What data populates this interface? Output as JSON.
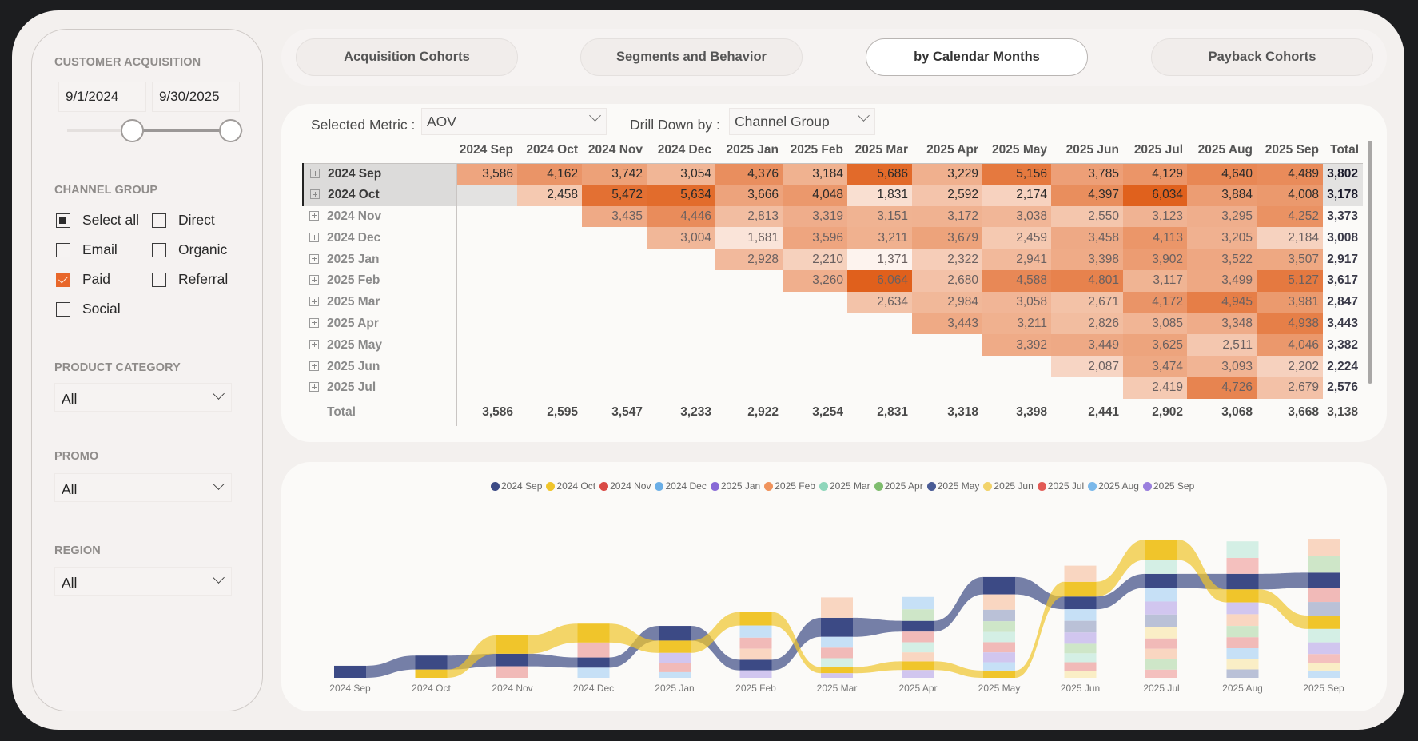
{
  "sidebar": {
    "customer_acquisition": {
      "heading": "CUSTOMER ACQUISITION",
      "start_date": "9/1/2024",
      "end_date": "9/30/2025"
    },
    "channel_group": {
      "heading": "CHANNEL GROUP",
      "options": [
        {
          "label": "Select all",
          "state": "partial"
        },
        {
          "label": "Direct",
          "state": "unchecked"
        },
        {
          "label": "Email",
          "state": "unchecked"
        },
        {
          "label": "Organic",
          "state": "unchecked"
        },
        {
          "label": "Paid",
          "state": "checked"
        },
        {
          "label": "Referral",
          "state": "unchecked"
        },
        {
          "label": "Social",
          "state": "unchecked"
        }
      ]
    },
    "product_category": {
      "heading": "PRODUCT CATEGORY",
      "value": "All"
    },
    "promo": {
      "heading": "PROMO",
      "value": "All"
    },
    "region": {
      "heading": "REGION",
      "value": "All"
    }
  },
  "tabs": [
    {
      "label": "Acquisition Cohorts",
      "active": false
    },
    {
      "label": "Segments and Behavior",
      "active": false
    },
    {
      "label": "by Calendar Months",
      "active": true
    },
    {
      "label": "Payback Cohorts",
      "active": false
    }
  ],
  "controls": {
    "metric_label": "Selected Metric :",
    "metric_value": "AOV",
    "drill_label": "Drill Down by :",
    "drill_value": "Channel Group"
  },
  "matrix": {
    "columns": [
      "2024 Sep",
      "2024 Oct",
      "2024 Nov",
      "2024 Dec",
      "2025 Jan",
      "2025 Feb",
      "2025 Mar",
      "2025 Apr",
      "2025 May",
      "2025 Jun",
      "2025 Jul",
      "2025 Aug",
      "2025 Sep"
    ],
    "total_label": "Total",
    "rows": [
      {
        "label": "2024 Sep",
        "selected": true,
        "values": [
          3586,
          4162,
          3742,
          3054,
          4376,
          3184,
          5686,
          3229,
          5156,
          3785,
          4129,
          4640,
          4489
        ],
        "total": 3802
      },
      {
        "label": "2024 Oct",
        "selected": true,
        "values": [
          null,
          2458,
          5472,
          5634,
          3666,
          4048,
          1831,
          2592,
          2174,
          4397,
          6034,
          3884,
          4008
        ],
        "total": 3178
      },
      {
        "label": "2024 Nov",
        "selected": false,
        "values": [
          null,
          null,
          3435,
          4446,
          2813,
          3319,
          3151,
          3172,
          3038,
          2550,
          3123,
          3295,
          4252
        ],
        "total": 3373
      },
      {
        "label": "2024 Dec",
        "selected": false,
        "values": [
          null,
          null,
          null,
          3004,
          1681,
          3596,
          3211,
          3679,
          2459,
          3458,
          4113,
          3205,
          2184
        ],
        "total": 3008
      },
      {
        "label": "2025 Jan",
        "selected": false,
        "values": [
          null,
          null,
          null,
          null,
          2928,
          2210,
          1371,
          2322,
          2941,
          3398,
          3902,
          3522,
          3507
        ],
        "total": 2917
      },
      {
        "label": "2025 Feb",
        "selected": false,
        "values": [
          null,
          null,
          null,
          null,
          null,
          3260,
          6064,
          2680,
          4588,
          4801,
          3117,
          3499,
          5127
        ],
        "total": 3617
      },
      {
        "label": "2025 Mar",
        "selected": false,
        "values": [
          null,
          null,
          null,
          null,
          null,
          null,
          2634,
          2984,
          3058,
          2671,
          4172,
          4945,
          3981
        ],
        "total": 2847
      },
      {
        "label": "2025 Apr",
        "selected": false,
        "values": [
          null,
          null,
          null,
          null,
          null,
          null,
          null,
          3443,
          3211,
          2826,
          3085,
          3348,
          4938
        ],
        "total": 3443
      },
      {
        "label": "2025 May",
        "selected": false,
        "values": [
          null,
          null,
          null,
          null,
          null,
          null,
          null,
          null,
          3392,
          3449,
          3625,
          2511,
          4046
        ],
        "total": 3382
      },
      {
        "label": "2025 Jun",
        "selected": false,
        "values": [
          null,
          null,
          null,
          null,
          null,
          null,
          null,
          null,
          null,
          2087,
          3474,
          3093,
          2202
        ],
        "total": 2224
      },
      {
        "label": "2025 Jul",
        "selected": false,
        "values": [
          null,
          null,
          null,
          null,
          null,
          null,
          null,
          null,
          null,
          null,
          2419,
          4726,
          2679
        ],
        "total": 2576
      }
    ],
    "column_totals": [
      3586,
      2595,
      3547,
      3233,
      2922,
      3254,
      2831,
      3318,
      3398,
      2441,
      2902,
      3068,
      3668
    ],
    "grand_total": 3138,
    "heat_color_high": "#e0601c",
    "heat_color_low": "#fdf3ee"
  },
  "chart_data": {
    "type": "ribbon",
    "title": "",
    "x": [
      "2024 Sep",
      "2024 Oct",
      "2024 Nov",
      "2024 Dec",
      "2025 Jan",
      "2025 Feb",
      "2025 Mar",
      "2025 Apr",
      "2025 May",
      "2025 Jun",
      "2025 Jul",
      "2025 Aug",
      "2025 Sep"
    ],
    "legend_position": "top-center",
    "highlighted_series": [
      "2024 Sep",
      "2024 Oct"
    ],
    "series": [
      {
        "name": "2024 Sep",
        "color": "#3c4a85",
        "values": [
          3586,
          4162,
          3742,
          3054,
          4376,
          3184,
          5686,
          3229,
          5156,
          3785,
          4129,
          4640,
          4489
        ]
      },
      {
        "name": "2024 Oct",
        "color": "#f0c52b",
        "values": [
          null,
          2458,
          5472,
          5634,
          3666,
          4048,
          1831,
          2592,
          2174,
          4397,
          6034,
          3884,
          4008
        ]
      },
      {
        "name": "2024 Nov",
        "color": "#d94a45",
        "values": [
          null,
          null,
          3435,
          4446,
          2813,
          3319,
          3151,
          3172,
          3038,
          2550,
          3123,
          3295,
          4252
        ]
      },
      {
        "name": "2024 Dec",
        "color": "#6aaee6",
        "values": [
          null,
          null,
          null,
          3004,
          1681,
          3596,
          3211,
          3679,
          2459,
          3458,
          4113,
          3205,
          2184
        ]
      },
      {
        "name": "2025 Jan",
        "color": "#8769d6",
        "values": [
          null,
          null,
          null,
          null,
          2928,
          2210,
          1371,
          2322,
          2941,
          3398,
          3902,
          3522,
          3507
        ]
      },
      {
        "name": "2025 Feb",
        "color": "#f0935c",
        "values": [
          null,
          null,
          null,
          null,
          null,
          3260,
          6064,
          2680,
          4588,
          4801,
          3117,
          3499,
          5127
        ]
      },
      {
        "name": "2025 Mar",
        "color": "#8fd6bb",
        "values": [
          null,
          null,
          null,
          null,
          null,
          null,
          2634,
          2984,
          3058,
          2671,
          4172,
          4945,
          3981
        ]
      },
      {
        "name": "2025 Apr",
        "color": "#7fbd6e",
        "values": [
          null,
          null,
          null,
          null,
          null,
          null,
          null,
          3443,
          3211,
          2826,
          3085,
          3348,
          4938
        ]
      },
      {
        "name": "2025 May",
        "color": "#4a5c96",
        "values": [
          null,
          null,
          null,
          null,
          null,
          null,
          null,
          null,
          3392,
          3449,
          3625,
          2511,
          4046
        ]
      },
      {
        "name": "2025 Jun",
        "color": "#f2d36a",
        "values": [
          null,
          null,
          null,
          null,
          null,
          null,
          null,
          null,
          null,
          2087,
          3474,
          3093,
          2202
        ]
      },
      {
        "name": "2025 Jul",
        "color": "#e25a55",
        "values": [
          null,
          null,
          null,
          null,
          null,
          null,
          null,
          null,
          null,
          null,
          2419,
          4726,
          2679
        ]
      },
      {
        "name": "2025 Aug",
        "color": "#7ab8ea",
        "values": [
          null,
          null,
          null,
          null,
          null,
          null,
          null,
          null,
          null,
          null,
          null,
          null,
          null
        ]
      },
      {
        "name": "2025 Sep",
        "color": "#9a7fde",
        "values": [
          null,
          null,
          null,
          null,
          null,
          null,
          null,
          null,
          null,
          null,
          null,
          null,
          null
        ]
      }
    ]
  }
}
